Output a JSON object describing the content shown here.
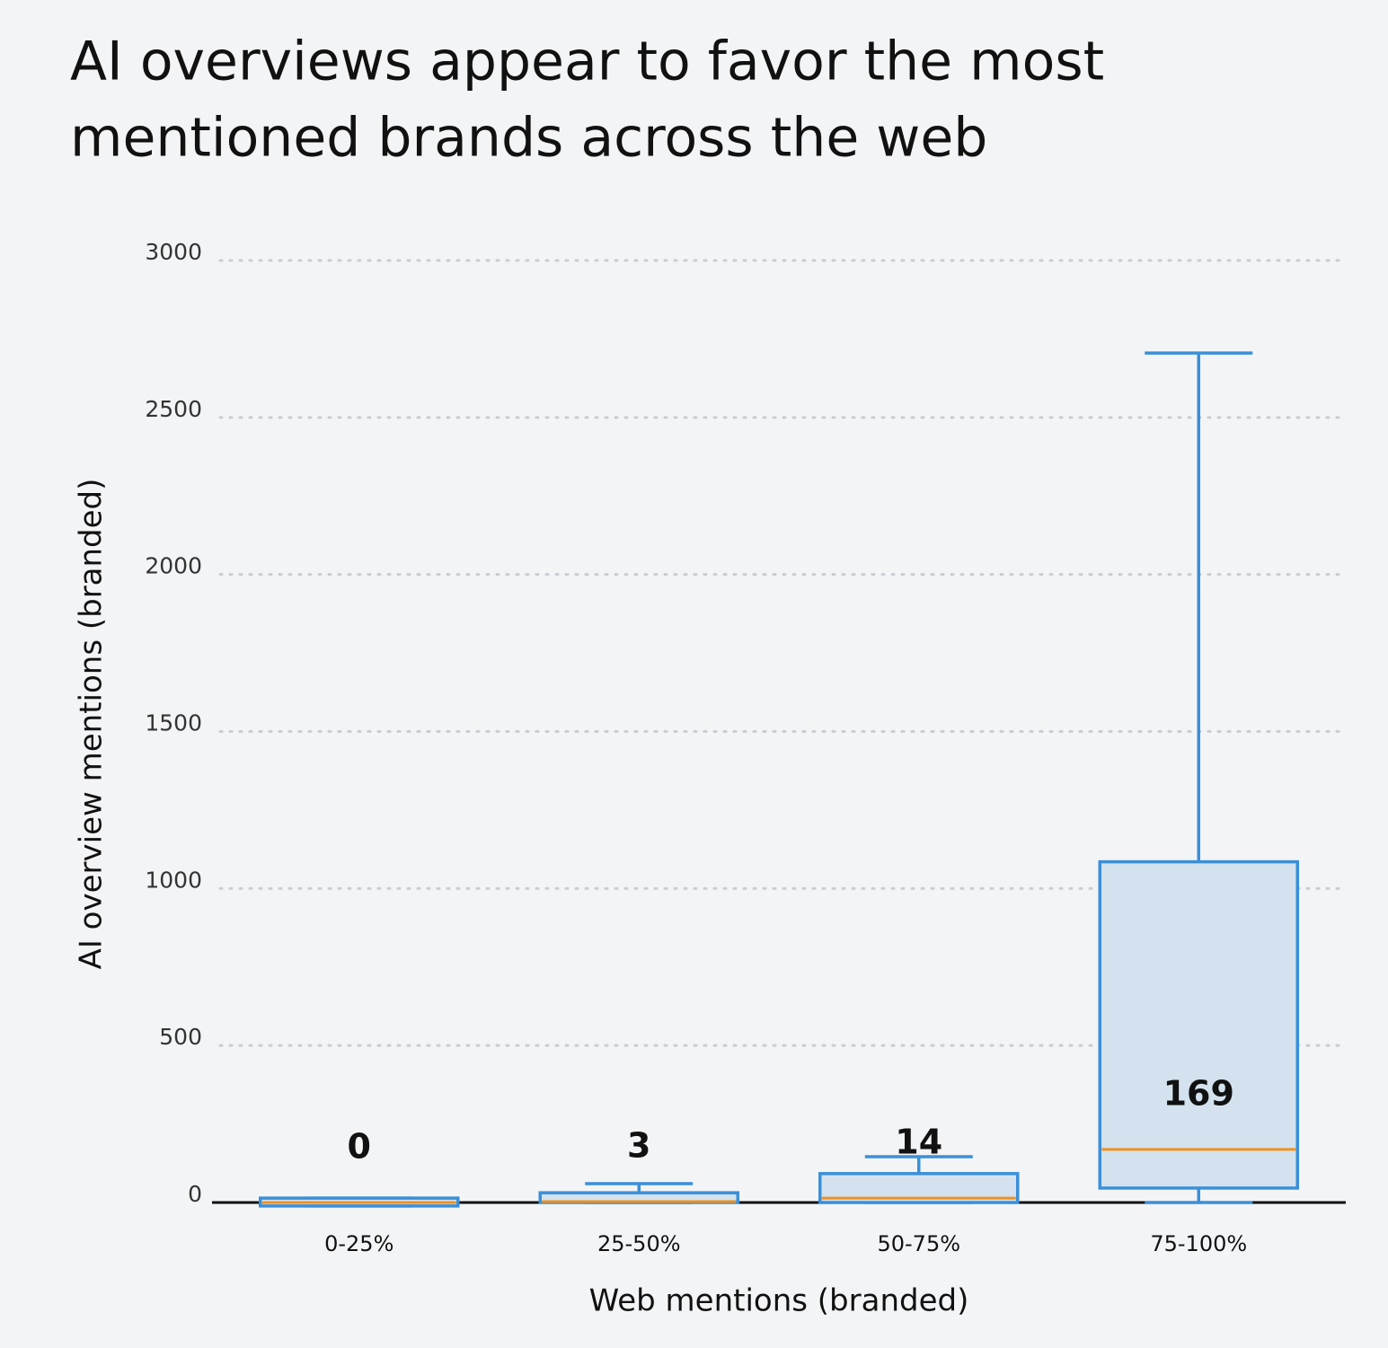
{
  "chart_data": {
    "type": "box",
    "title": [
      "AI overviews appear to favor the most",
      "mentioned brands across the web"
    ],
    "x_label": "Web mentions (branded)",
    "y_label": "AI overview mentions (branded)",
    "categories": [
      "0-25%",
      "25-50%",
      "50-75%",
      "75-100%"
    ],
    "min": [
      -11,
      0,
      0,
      0
    ],
    "q1": [
      -11,
      0,
      0,
      46
    ],
    "median": [
      0,
      3,
      14,
      169
    ],
    "q3": [
      14,
      31,
      92,
      1085
    ],
    "max": [
      14,
      60,
      146,
      2705
    ],
    "box_color": "#3a8fd9",
    "box_fill": "#d3e2ee",
    "median_color": "#f0901e",
    "ylim": [
      0,
      3000
    ],
    "yticks": [
      0,
      500,
      1000,
      1500,
      2000,
      2500,
      3000
    ],
    "grid": true
  }
}
